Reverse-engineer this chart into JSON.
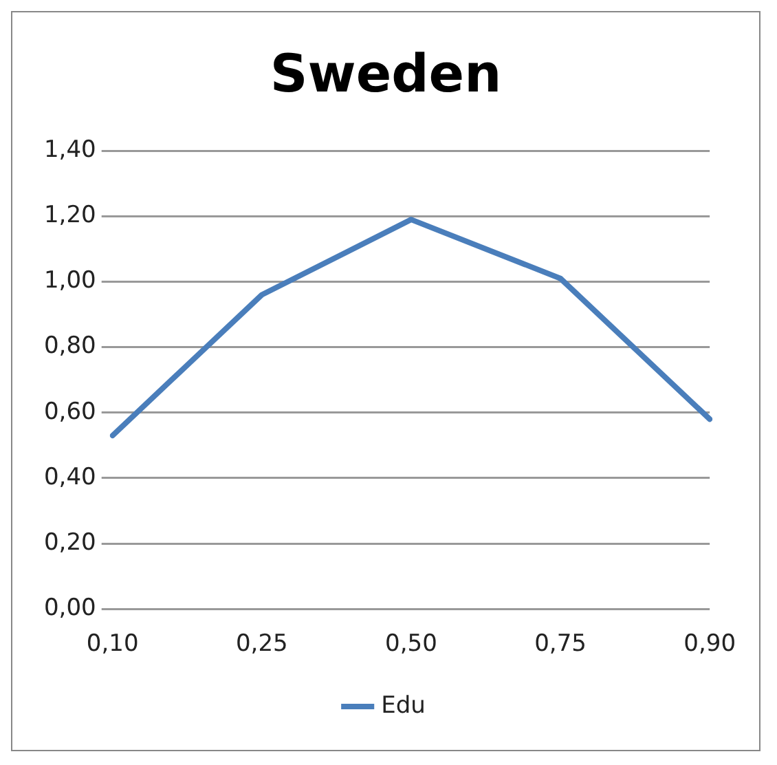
{
  "chart_data": {
    "type": "line",
    "title": "Sweden",
    "categories": [
      "0,10",
      "0,25",
      "0,50",
      "0,75",
      "0,90"
    ],
    "series": [
      {
        "name": "Edu",
        "color": "#4a7ebb",
        "values": [
          0.53,
          0.96,
          1.19,
          1.01,
          0.58
        ]
      }
    ],
    "ylim": [
      0,
      1.4
    ],
    "yticks": [
      {
        "value": 0,
        "label": "0,00"
      },
      {
        "value": 0.2,
        "label": "0,20"
      },
      {
        "value": 0.4,
        "label": "0,40"
      },
      {
        "value": 0.6,
        "label": "0,60"
      },
      {
        "value": 0.8,
        "label": "0,80"
      },
      {
        "value": 1,
        "label": "1,00"
      },
      {
        "value": 1.2,
        "label": "1,20"
      },
      {
        "value": 1.4,
        "label": "1,40"
      }
    ],
    "grid": "y",
    "legend": "bottom",
    "marker": "none",
    "line_style": "solid"
  }
}
